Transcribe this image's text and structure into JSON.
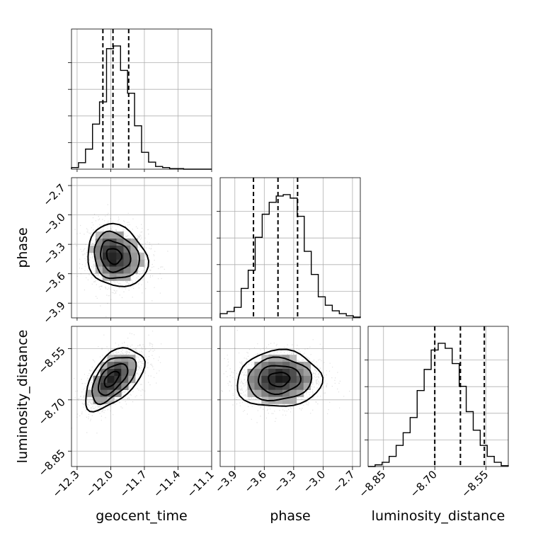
{
  "chart_data": {
    "type": "corner",
    "parameters": [
      "geocent_time",
      "phase",
      "luminosity_distance"
    ],
    "axis_labels": {
      "x": [
        "geocent_time",
        "phase",
        "luminosity_distance"
      ],
      "y_row2": "phase",
      "y_row3": "luminosity_distance"
    },
    "ranges": {
      "geocent_time": [
        -12.35,
        -11.1
      ],
      "phase": [
        -4.05,
        -2.62
      ],
      "luminosity_distance": [
        -8.895,
        -8.485
      ]
    },
    "ticks": {
      "geocent_time": [
        -12.3,
        -12.0,
        -11.7,
        -11.4,
        -11.1
      ],
      "phase": [
        -3.9,
        -3.6,
        -3.3,
        -3.0,
        -2.7
      ],
      "luminosity_distance": [
        -8.85,
        -8.7,
        -8.55
      ]
    },
    "tick_labels": {
      "geocent_time": [
        "−12.3",
        "−12.0",
        "−11.7",
        "−11.4",
        "−11.1"
      ],
      "phase": [
        "−3.9",
        "−3.6",
        "−3.3",
        "−3.0",
        "−2.7"
      ],
      "luminosity_distance": [
        "−8.85",
        "−8.70",
        "−8.55"
      ]
    },
    "quantiles": {
      "geocent_time": [
        -12.07,
        -11.98,
        -11.84
      ],
      "phase": [
        -3.71,
        -3.46,
        -3.26
      ],
      "luminosity_distance": [
        -8.7,
        -8.625,
        -8.555
      ]
    },
    "hist1d": {
      "geocent_time": {
        "edges_start": -12.35,
        "bin_width": 0.0625,
        "counts": [
          3,
          12,
          37,
          83,
          124,
          222,
          227,
          182,
          140,
          80,
          31,
          13,
          5,
          3,
          1,
          1,
          0,
          0,
          0,
          0
        ]
      },
      "phase": {
        "edges_start": -4.05,
        "bin_width": 0.0715,
        "counts": [
          6,
          9,
          15,
          42,
          68,
          115,
          148,
          165,
          174,
          176,
          171,
          145,
          95,
          62,
          30,
          18,
          10,
          6,
          3,
          1
        ]
      },
      "luminosity_distance": {
        "edges_start": -8.895,
        "bin_width": 0.0205,
        "counts": [
          0,
          2,
          5,
          12,
          25,
          40,
          58,
          90,
          115,
          138,
          146,
          140,
          122,
          95,
          65,
          43,
          25,
          12,
          5,
          1
        ]
      }
    },
    "hist2d_centers": {
      "geocent_time_vs_phase": [
        -11.98,
        -3.42
      ],
      "geocent_time_vs_luminosity_distance": [
        -12.0,
        -8.64
      ],
      "phase_vs_luminosity_distance": [
        -3.45,
        -8.64
      ]
    },
    "grid": true
  }
}
